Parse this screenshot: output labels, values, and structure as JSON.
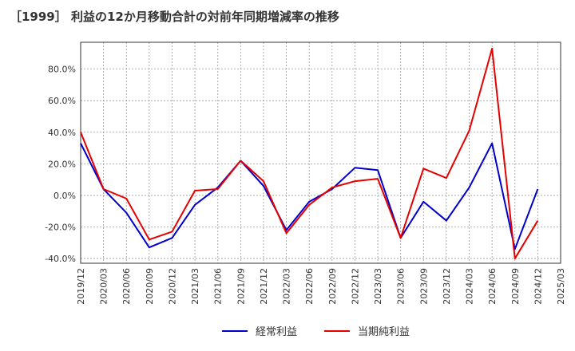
{
  "chart_data": {
    "type": "line",
    "title": "［1999］ 利益の12か月移動合計の対前年同期増減率の推移",
    "xlabel": "",
    "ylabel": "",
    "categories": [
      "2019/12",
      "2020/03",
      "2020/06",
      "2020/09",
      "2020/12",
      "2021/03",
      "2021/06",
      "2021/09",
      "2021/12",
      "2022/03",
      "2022/06",
      "2022/09",
      "2022/12",
      "2023/03",
      "2023/06",
      "2023/09",
      "2023/12",
      "2024/03",
      "2024/06",
      "2024/09",
      "2024/12",
      "2025/03"
    ],
    "yticks": [
      -40,
      -20,
      0,
      20,
      40,
      60,
      80
    ],
    "ytick_labels": [
      "-40.0%",
      "-20.0%",
      "0.0%",
      "20.0%",
      "40.0%",
      "60.0%",
      "80.0%"
    ],
    "ylim": [
      -43,
      97
    ],
    "grid": true,
    "legend_position": "bottom-center",
    "series": [
      {
        "name": "経常利益",
        "color": "#0000cc",
        "values": [
          33,
          4,
          -11,
          -33,
          -27,
          -6,
          5,
          22,
          6,
          -22,
          -4,
          4,
          17.5,
          16,
          -27,
          -4,
          -16,
          5,
          33,
          -34,
          4,
          null
        ]
      },
      {
        "name": "当期純利益",
        "color": "#e60000",
        "values": [
          40,
          4,
          -2,
          -28,
          -23,
          3,
          4,
          22,
          9,
          -24,
          -6,
          5,
          9,
          10.5,
          -27,
          17,
          11,
          41,
          93,
          -40,
          -16,
          null
        ]
      }
    ]
  }
}
